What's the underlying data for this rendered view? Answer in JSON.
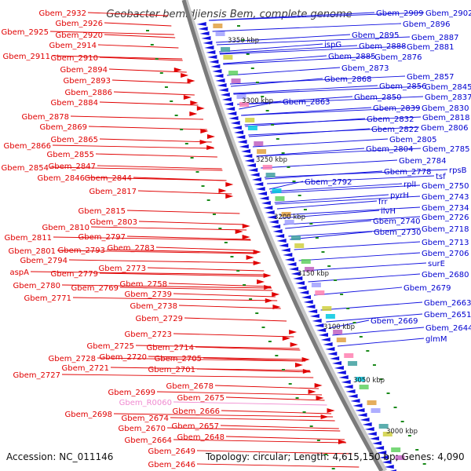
{
  "title": "Geobacter bemidjiensis Bem, complete genome",
  "accession_text": "Accession: NC_011146",
  "summary_text": "Topology: circular; Length: 4,615,150 bp; Genes: 4,090",
  "ticks": [
    "3350 kbp",
    "3300 kbp",
    "3250 kbp",
    "3200 kbp",
    "3150 kbp",
    "3100 kbp",
    "3050 kbp",
    "3000 kbp"
  ],
  "left_labels": [
    "Gbem_2932",
    "Gbem_2926",
    "Gbem_2925",
    "Gbem_2920",
    "Gbem_2914",
    "Gbem_2911",
    "Gbem_2910",
    "Gbem_2894",
    "Gbem_2893",
    "Gbem_2886",
    "Gbem_2884",
    "Gbem_2878",
    "Gbem_2869",
    "Gbem_2866",
    "Gbem_2865",
    "Gbem_2855",
    "Gbem_2854",
    "Gbem_2847",
    "Gbem_2846",
    "Gbem_2844",
    "Gbem_2817",
    "Gbem_2815",
    "Gbem_2803",
    "Gbem_2810",
    "Gbem_2811",
    "Gbem_2797",
    "Gbem_2801",
    "Gbem_2793",
    "Gbem_2783",
    "Gbem_2794",
    "aspA",
    "Gbem_2779",
    "Gbem_2773",
    "Gbem_2780",
    "Gbem_2769",
    "Gbem_2758",
    "Gbem_2771",
    "Gbem_2739",
    "Gbem_2738",
    "Gbem_2729",
    "Gbem_2723",
    "Gbem_2725",
    "Gbem_2714",
    "Gbem_2728",
    "Gbem_2720",
    "Gbem_2705",
    "Gbem_2721",
    "Gbem_2701",
    "Gbem_2727",
    "Gbem_2678",
    "Gbem_2699",
    "Gbem_2675",
    "Gbem_2698",
    "Gbem_2666",
    "Gbem_2674",
    "Gbem_2670",
    "Gbem_2657",
    "Gbem_2648",
    "Gbem_2664",
    "Gbem_2649",
    "Gbem_2646"
  ],
  "pink_labels": [
    "Gbem_R0060"
  ],
  "right_labels": [
    "Gbem_2909",
    "Gbem_2902",
    "Gbem_2896",
    "Gbem_2895",
    "Gbem_2887",
    "ispG",
    "Gbem_2888",
    "Gbem_2881",
    "Gbem_2885",
    "Gbem_2876",
    "Gbem_2873",
    "Gbem_2857",
    "Gbem_2868",
    "Gbem_2856",
    "Gbem_2845",
    "Gbem_2837",
    "Gbem_2863",
    "Gbem_2850",
    "Gbem_2839",
    "Gbem_2830",
    "Gbem_2818",
    "Gbem_2832",
    "Gbem_2806",
    "Gbem_2822",
    "Gbem_2805",
    "Gbem_2804",
    "Gbem_2785",
    "Gbem_2784",
    "rpsB",
    "Gbem_2778",
    "tsf",
    "Gbem_2792",
    "Gbem_2750",
    "rplI",
    "Gbem_2743",
    "pyrH",
    "frr",
    "Gbem_2734",
    "ilvH",
    "Gbem_2726",
    "Gbem_2740",
    "Gbem_2718",
    "Gbem_2730",
    "Gbem_2713",
    "Gbem_2706",
    "surE",
    "Gbem_2680",
    "Gbem_2679",
    "Gbem_2663",
    "Gbem_2651",
    "Gbem_2669",
    "Gbem_2644",
    "glmM"
  ],
  "colors": {
    "forward_cds": "#e00000",
    "reverse_cds": "#1010e0",
    "rna": "#f08ad0",
    "backbone": "#8a8a8a",
    "markers": "#1a8a1a"
  }
}
